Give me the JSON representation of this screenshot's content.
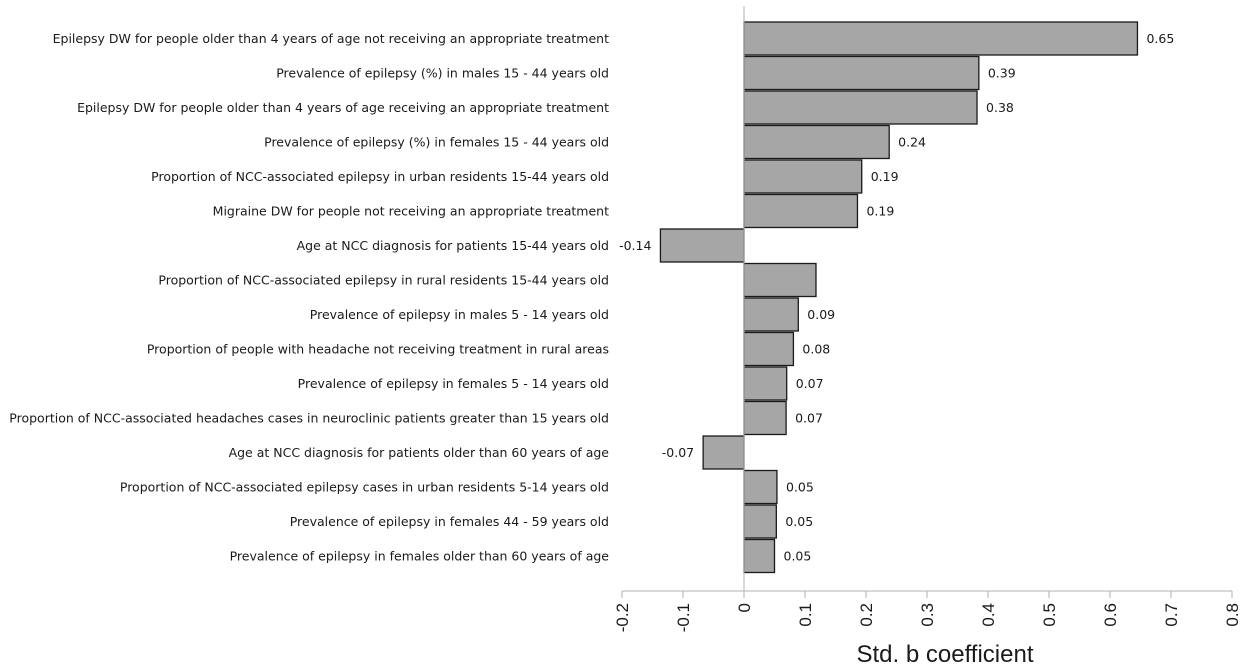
{
  "chart_data": {
    "type": "bar",
    "orientation": "horizontal",
    "categories": [
      "Epilepsy DW for people older than 4 years of age not receiving an appropriate treatment",
      "Prevalence of epilepsy (%) in males 15 - 44 years old",
      "Epilepsy DW for people older than 4 years of age receiving an appropriate treatment",
      "Prevalence of epilepsy (%) in females 15 - 44 years old",
      "Proportion of NCC-associated epilepsy in urban residents 15-44 years old",
      "Migraine DW  for people not receiving an appropriate treatment",
      "Age at NCC diagnosis for patients 15-44 years old",
      "Proportion of NCC-associated epilepsy in rural residents 15-44 years old",
      "Prevalence of epilepsy in males 5 - 14 years old",
      "Proportion of people with headache not receiving treatment in rural areas",
      "Prevalence of epilepsy in females 5 - 14 years old",
      "Proportion of NCC-associated headaches cases in neuroclinic patients greater than 15 years old",
      "Age at NCC diagnosis for patients older than 60 years of age",
      "Proportion of NCC-associated epilepsy cases in urban  residents 5-14 years old",
      "Prevalence of epilepsy in females 44 - 59 years old",
      "Prevalence of epilepsy in females older than 60 years of age"
    ],
    "values": [
      0.645,
      0.385,
      0.382,
      0.238,
      0.193,
      0.186,
      -0.137,
      0.118,
      0.089,
      0.081,
      0.07,
      0.069,
      -0.067,
      0.054,
      0.053,
      0.05
    ],
    "data_labels": [
      "0.65",
      "0.39",
      "0.38",
      "0.24",
      "0.19",
      "0.19",
      "-0.14",
      "",
      "0.09",
      "0.08",
      "0.07",
      "0.07",
      "-0.07",
      "0.05",
      "0.05",
      "0.05"
    ],
    "xlabel": "Std. b coefficient",
    "xlim": [
      -0.2,
      0.8
    ],
    "xticks": [
      -0.2,
      -0.1,
      0,
      0.1,
      0.2,
      0.3,
      0.4,
      0.5,
      0.6,
      0.7,
      0.8
    ],
    "xtick_labels": [
      "-0.2",
      "-0.1",
      "0",
      "0.1",
      "0.2",
      "0.3",
      "0.4",
      "0.5",
      "0.6",
      "0.7",
      "0.8"
    ],
    "grid": false,
    "legend": "none",
    "colors": {
      "bar_fill": "#a6a6a6",
      "bar_stroke": "#1a1a1a",
      "axis": "#b0b0b0"
    }
  }
}
